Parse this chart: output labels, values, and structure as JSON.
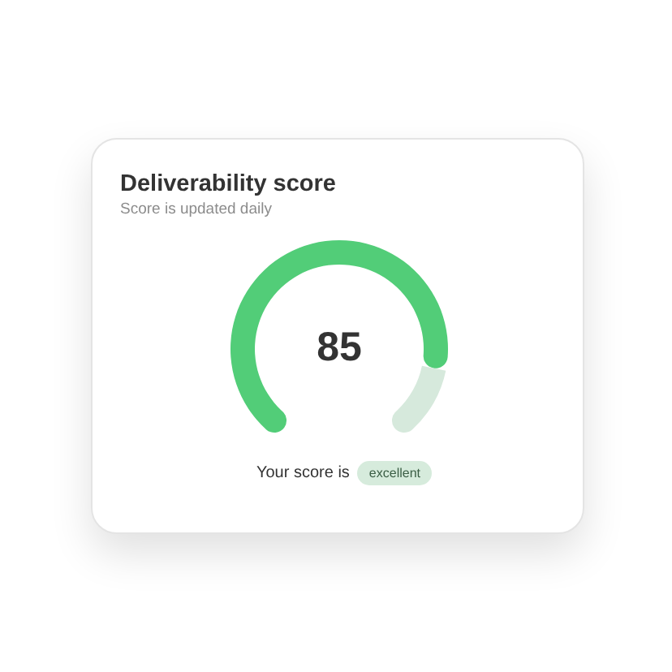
{
  "chart_data": {
    "type": "donut",
    "title": "Deliverability score",
    "subtitle": "Score is updated daily",
    "categories": [
      null,
      null
    ],
    "values": [
      85,
      15
    ],
    "colors": [
      "#52cd78",
      "#d6e9dc"
    ],
    "value_labels": [
      "85",
      null
    ],
    "annotations": [
      "Your score is",
      "excellent"
    ]
  }
}
